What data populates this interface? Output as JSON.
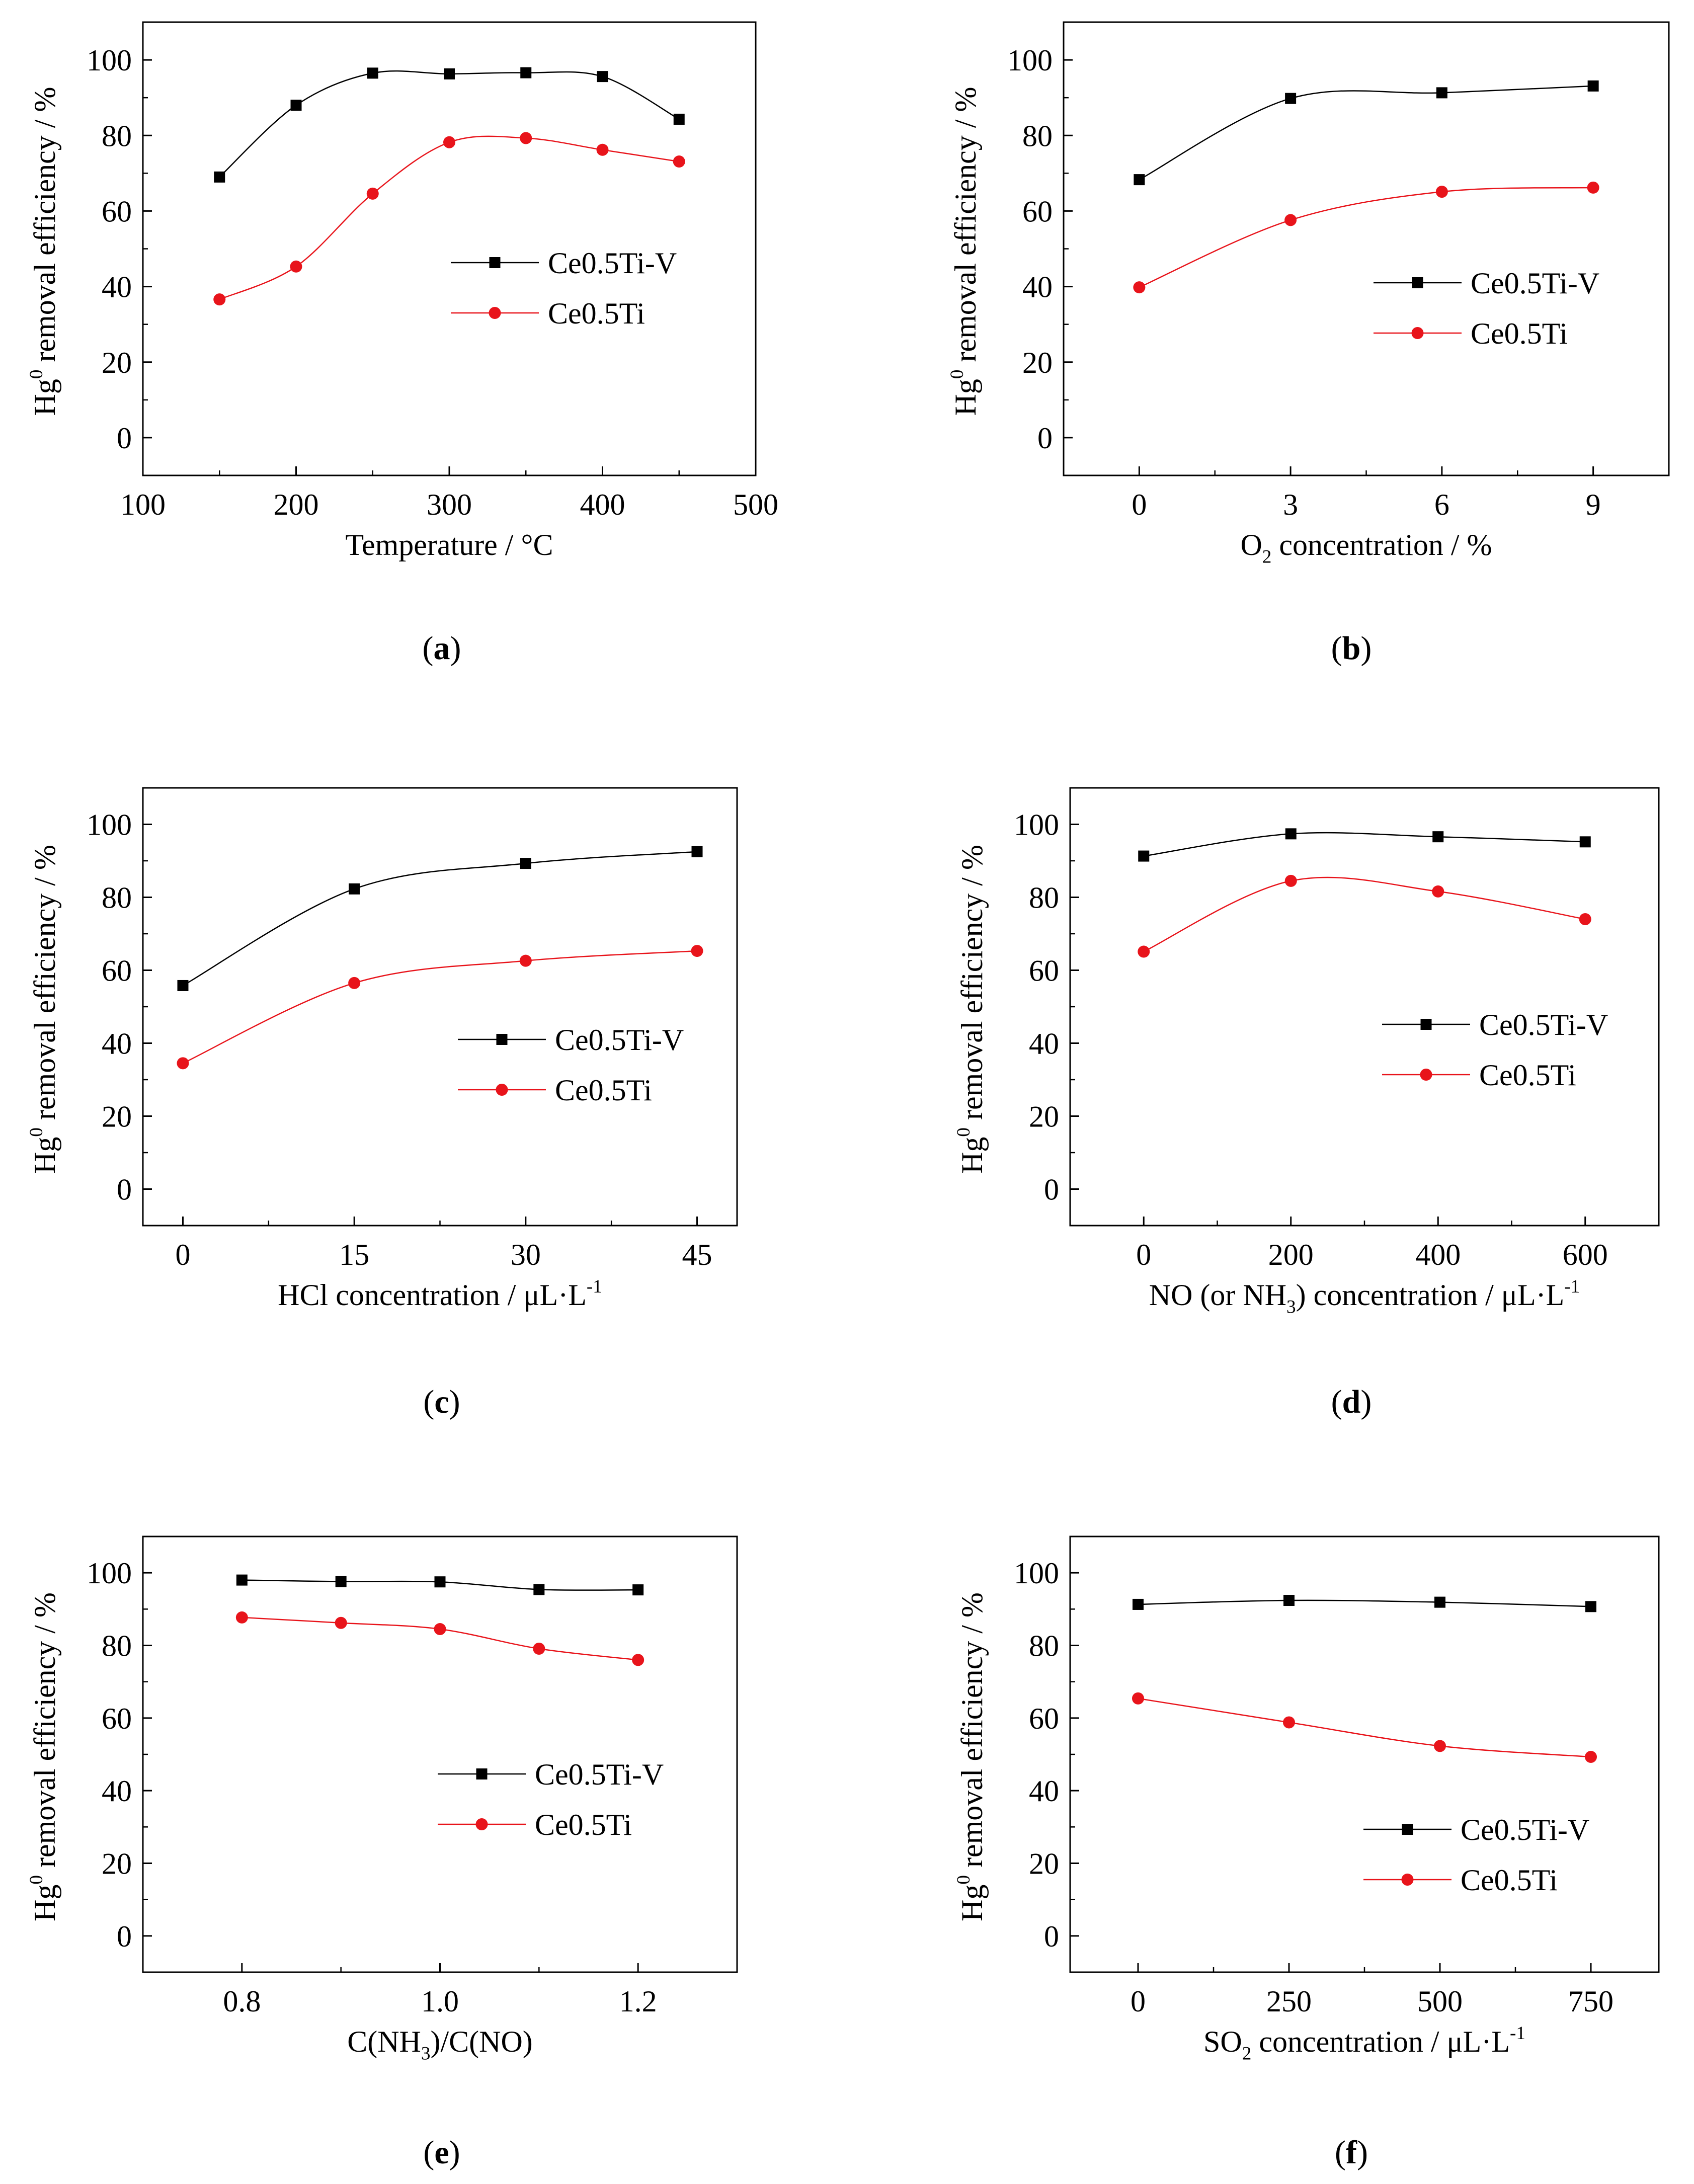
{
  "colors": {
    "ce05tiv": "#000000",
    "ce05ti": "#e8141b",
    "axis": "#000000"
  },
  "legend_labels": [
    "Ce0.5Ti-V",
    "Ce0.5Ti"
  ],
  "chart_data": [
    {
      "id": "a",
      "panel_label": "a",
      "type": "line",
      "xlabel": "Temperature / °C",
      "ylabel": "Hg0 removal efficiency / %",
      "xlim": [
        100,
        500
      ],
      "ylim": [
        -10,
        110
      ],
      "xticks": [
        100,
        200,
        300,
        400,
        500
      ],
      "yticks": [
        0,
        20,
        40,
        60,
        80,
        100
      ],
      "grid": false,
      "legend_position": "center-right",
      "x": [
        150,
        200,
        250,
        300,
        350,
        400,
        450
      ],
      "series": [
        {
          "name": "Ce0.5Ti-V",
          "marker": "square",
          "values": [
            69,
            88,
            96.5,
            96.3,
            96.6,
            95.6,
            84.3
          ]
        },
        {
          "name": "Ce0.5Ti",
          "marker": "circle",
          "values": [
            36.6,
            45.3,
            64.6,
            78.2,
            79.3,
            76.2,
            73.1
          ]
        }
      ]
    },
    {
      "id": "b",
      "panel_label": "b",
      "type": "line",
      "xlabel": "O2 concentration / %",
      "ylabel": "Hg0 removal efficiency / %",
      "xlim": [
        -1.5,
        10.5
      ],
      "ylim": [
        -10,
        110
      ],
      "xticks": [
        0,
        3,
        6,
        9
      ],
      "yticks": [
        0,
        20,
        40,
        60,
        80,
        100
      ],
      "grid": false,
      "legend_position": "center-right",
      "x": [
        0,
        3,
        6,
        9
      ],
      "series": [
        {
          "name": "Ce0.5Ti-V",
          "marker": "square",
          "values": [
            68.3,
            89.8,
            91.3,
            93.1
          ]
        },
        {
          "name": "Ce0.5Ti",
          "marker": "circle",
          "values": [
            39.8,
            57.6,
            65.1,
            66.2
          ]
        }
      ]
    },
    {
      "id": "c",
      "panel_label": "c",
      "type": "line",
      "xlabel": "HCl concentration / μL·L-1",
      "ylabel": "Hg0 removal efficiency / %",
      "xlim": [
        -3.5,
        48.5
      ],
      "ylim": [
        -10,
        110
      ],
      "xticks": [
        0,
        15,
        30,
        45
      ],
      "yticks": [
        0,
        20,
        40,
        60,
        80,
        100
      ],
      "grid": false,
      "legend_position": "center-right",
      "x": [
        0,
        15,
        30,
        45
      ],
      "series": [
        {
          "name": "Ce0.5Ti-V",
          "marker": "square",
          "values": [
            55.8,
            82.3,
            89.3,
            92.5
          ]
        },
        {
          "name": "Ce0.5Ti",
          "marker": "circle",
          "values": [
            34.5,
            56.5,
            62.6,
            65.3
          ]
        }
      ]
    },
    {
      "id": "d",
      "panel_label": "d",
      "type": "line",
      "xlabel": "NO (or NH3) concentration / μL·L-1",
      "ylabel": "Hg0 removal efficiency / %",
      "xlim": [
        -100,
        700
      ],
      "ylim": [
        -10,
        110
      ],
      "xticks": [
        0,
        200,
        400,
        600
      ],
      "yticks": [
        0,
        20,
        40,
        60,
        80,
        100
      ],
      "grid": false,
      "legend_position": "center-right",
      "x": [
        0,
        200,
        400,
        600
      ],
      "series": [
        {
          "name": "Ce0.5Ti-V",
          "marker": "square",
          "values": [
            91.3,
            97.4,
            96.6,
            95.2
          ]
        },
        {
          "name": "Ce0.5Ti",
          "marker": "circle",
          "values": [
            65.1,
            84.5,
            81.6,
            74
          ]
        }
      ]
    },
    {
      "id": "e",
      "panel_label": "e",
      "type": "line",
      "xlabel": "C(NH3)/C(NO)",
      "ylabel": "Hg0 removal efficiency / %",
      "xlim": [
        0.7,
        1.3
      ],
      "ylim": [
        -10,
        110
      ],
      "xticks": [
        0.8,
        1.0,
        1.2
      ],
      "xtick_labels": [
        "0.8",
        "1.0",
        "1.2"
      ],
      "yticks": [
        0,
        20,
        40,
        60,
        80,
        100
      ],
      "grid": false,
      "legend_position": "center-right",
      "x": [
        0.8,
        0.9,
        1.0,
        1.1,
        1.2
      ],
      "series": [
        {
          "name": "Ce0.5Ti-V",
          "marker": "square",
          "values": [
            98,
            97.6,
            97.5,
            95.4,
            95.3
          ]
        },
        {
          "name": "Ce0.5Ti",
          "marker": "circle",
          "values": [
            87.7,
            86.2,
            84.5,
            79.1,
            76
          ]
        }
      ]
    },
    {
      "id": "f",
      "panel_label": "f",
      "type": "line",
      "xlabel": "SO2 concentration / μL·L-1",
      "ylabel": "Hg0 removal efficiency / %",
      "xlim": [
        -112.5,
        862.5
      ],
      "ylim": [
        -10,
        110
      ],
      "xticks": [
        0,
        250,
        500,
        750
      ],
      "yticks": [
        0,
        20,
        40,
        60,
        80,
        100
      ],
      "grid": false,
      "legend_position": "center-right",
      "x": [
        0,
        250,
        500,
        750
      ],
      "series": [
        {
          "name": "Ce0.5Ti-V",
          "marker": "square",
          "values": [
            91.3,
            92.4,
            91.9,
            90.7
          ]
        },
        {
          "name": "Ce0.5Ti",
          "marker": "circle",
          "values": [
            65.4,
            58.8,
            52.3,
            49.3
          ]
        }
      ]
    }
  ]
}
